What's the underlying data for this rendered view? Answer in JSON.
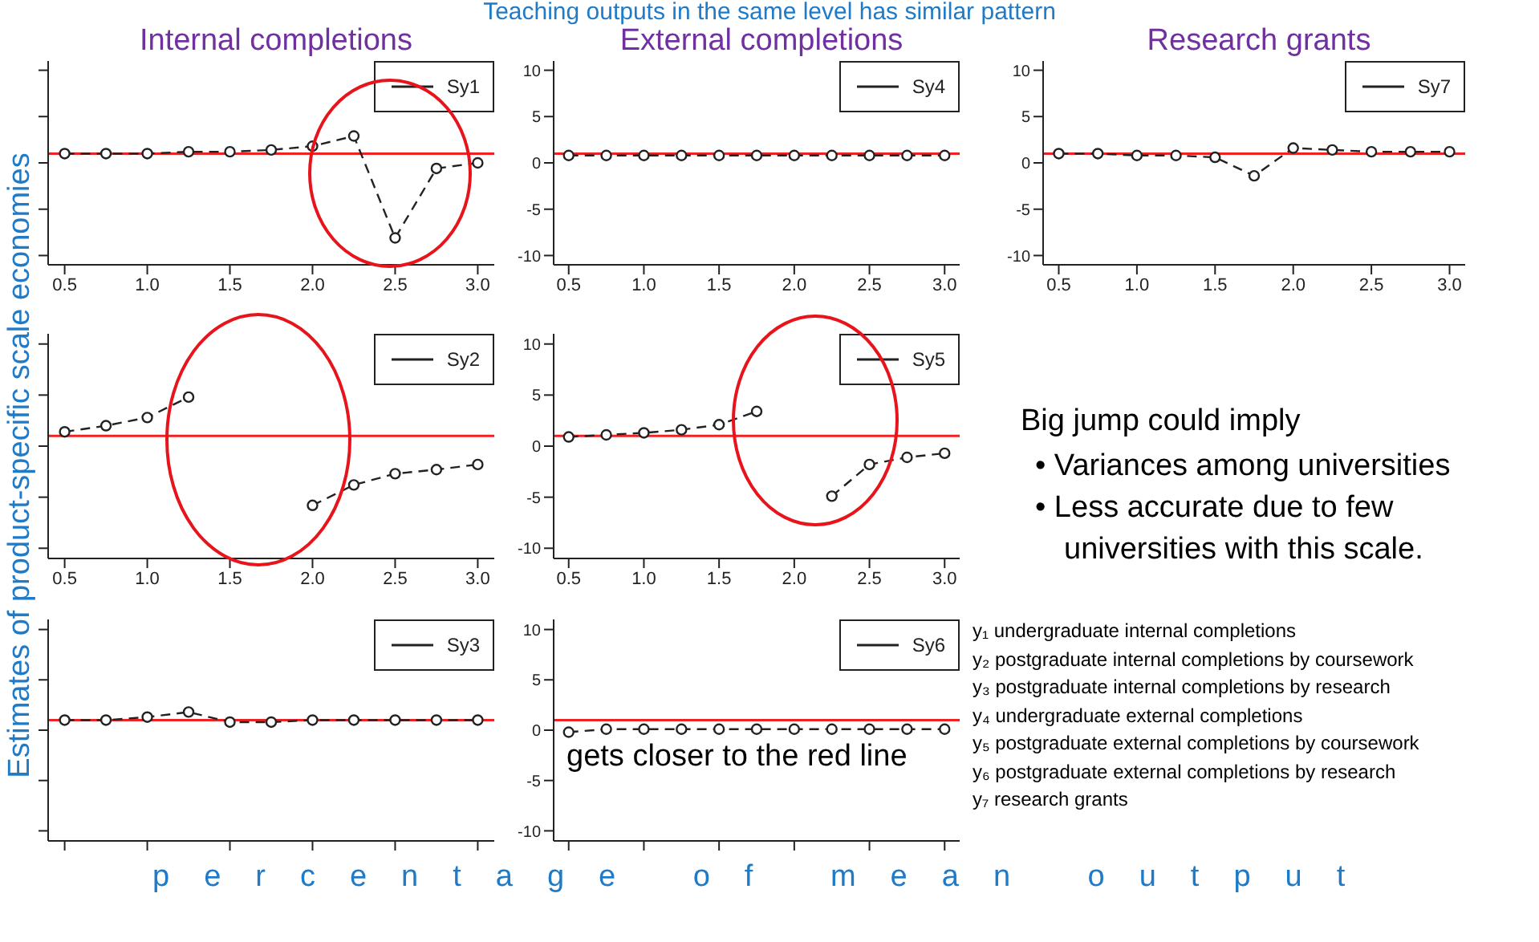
{
  "chart_data": [
    {
      "type": "line",
      "title": "Internal completions",
      "x": [
        0.5,
        0.75,
        1,
        1.25,
        1.5,
        1.75,
        2,
        2.25,
        2.5,
        2.75,
        3
      ],
      "series": [
        {
          "name": "Sy1",
          "color": "#222222",
          "values": [
            1,
            1,
            1,
            1.2,
            1.2,
            1.4,
            1.8,
            2.9,
            -8.1,
            -0.6,
            0
          ]
        }
      ],
      "xlim": [
        0.4,
        3.1
      ],
      "xticks": [
        0.5,
        {
          "value": 1,
          "label": "1.0"
        },
        1.5,
        {
          "value": 2,
          "label": "2.0"
        },
        2.5,
        {
          "value": 3,
          "label": "3.0"
        }
      ],
      "ylim": [
        -11,
        11
      ],
      "yticks": [
        -10,
        -5,
        0,
        5,
        10
      ],
      "tick_labels": "x",
      "legend": "top right",
      "marker": "circle",
      "line_style": "dashed",
      "ref_lines": [
        {
          "axis": "y",
          "value": 1,
          "color": "#ee2222"
        }
      ]
    },
    {
      "type": "line",
      "title": "External completions",
      "x": [
        0.5,
        0.75,
        1,
        1.25,
        1.5,
        1.75,
        2,
        2.25,
        2.5,
        2.75,
        3
      ],
      "series": [
        {
          "name": "Sy4",
          "color": "#222222",
          "values": [
            0.8,
            0.8,
            0.8,
            0.8,
            0.8,
            0.8,
            0.8,
            0.8,
            0.8,
            0.8,
            0.8
          ]
        }
      ],
      "xlim": [
        0.4,
        3.1
      ],
      "xticks": [
        0.5,
        {
          "value": 1,
          "label": "1.0"
        },
        1.5,
        {
          "value": 2,
          "label": "2.0"
        },
        2.5,
        {
          "value": 3,
          "label": "3.0"
        }
      ],
      "ylim": [
        -11,
        11
      ],
      "yticks": [
        -10,
        -5,
        0,
        5,
        10
      ],
      "legend": "top right",
      "marker": "circle",
      "line_style": "dashed",
      "ref_lines": [
        {
          "axis": "y",
          "value": 1,
          "color": "#ee2222"
        }
      ]
    },
    {
      "type": "line",
      "title": "Research grants",
      "x": [
        0.5,
        0.75,
        1,
        1.25,
        1.5,
        1.75,
        2,
        2.25,
        2.5,
        2.75,
        3
      ],
      "series": [
        {
          "name": "Sy7",
          "color": "#222222",
          "values": [
            1,
            1,
            0.8,
            0.8,
            0.6,
            -1.4,
            1.6,
            1.4,
            1.2,
            1.2,
            1.2
          ]
        }
      ],
      "xlim": [
        0.4,
        3.1
      ],
      "xticks": [
        0.5,
        {
          "value": 1,
          "label": "1.0"
        },
        1.5,
        {
          "value": 2,
          "label": "2.0"
        },
        2.5,
        {
          "value": 3,
          "label": "3.0"
        }
      ],
      "ylim": [
        -11,
        11
      ],
      "yticks": [
        -10,
        -5,
        0,
        5,
        10
      ],
      "legend": "top right",
      "marker": "circle",
      "line_style": "dashed",
      "ref_lines": [
        {
          "axis": "y",
          "value": 1,
          "color": "#ee2222"
        }
      ]
    },
    {
      "type": "line",
      "x": [
        0.5,
        0.75,
        1,
        1.25,
        1.5,
        1.75,
        2,
        2.25,
        2.5,
        2.75,
        3
      ],
      "series": [
        {
          "name": "Sy2",
          "color": "#222222",
          "values": [
            1.4,
            2,
            2.8,
            4.8,
            null,
            null,
            -5.8,
            -3.8,
            -2.7,
            -2.3,
            -1.8
          ]
        }
      ],
      "xlim": [
        0.4,
        3.1
      ],
      "xticks": [
        0.5,
        {
          "value": 1,
          "label": "1.0"
        },
        1.5,
        {
          "value": 2,
          "label": "2.0"
        },
        2.5,
        {
          "value": 3,
          "label": "3.0"
        }
      ],
      "ylim": [
        -11,
        11
      ],
      "yticks": [
        -10,
        -5,
        0,
        5,
        10
      ],
      "tick_labels": "x",
      "legend": "top right",
      "marker": "circle",
      "line_style": "dashed",
      "ref_lines": [
        {
          "axis": "y",
          "value": 1,
          "color": "#ee2222"
        }
      ]
    },
    {
      "type": "line",
      "x": [
        0.5,
        0.75,
        1,
        1.25,
        1.5,
        1.75,
        2,
        2.25,
        2.5,
        2.75,
        3
      ],
      "series": [
        {
          "name": "Sy5",
          "color": "#222222",
          "values": [
            0.9,
            1.1,
            1.3,
            1.6,
            2.1,
            3.4,
            null,
            -4.9,
            -1.8,
            -1.1,
            -0.7
          ]
        }
      ],
      "xlim": [
        0.4,
        3.1
      ],
      "xticks": [
        0.5,
        {
          "value": 1,
          "label": "1.0"
        },
        1.5,
        {
          "value": 2,
          "label": "2.0"
        },
        2.5,
        {
          "value": 3,
          "label": "3.0"
        }
      ],
      "ylim": [
        -11,
        11
      ],
      "yticks": [
        -10,
        -5,
        0,
        5,
        10
      ],
      "legend": "top right",
      "marker": "circle",
      "line_style": "dashed",
      "ref_lines": [
        {
          "axis": "y",
          "value": 1,
          "color": "#ee2222"
        }
      ]
    },
    {
      "type": "line",
      "x": [
        0.5,
        0.75,
        1,
        1.25,
        1.5,
        1.75,
        2,
        2.25,
        2.5,
        2.75,
        3
      ],
      "series": [
        {
          "name": "Sy3",
          "color": "#222222",
          "values": [
            1,
            1,
            1.3,
            1.8,
            0.8,
            0.8,
            1,
            1,
            1,
            1,
            1
          ]
        }
      ],
      "xlim": [
        0.4,
        3.1
      ],
      "xticks": [
        {
          "value": 0.5,
          "label": null
        },
        {
          "value": 1,
          "label": null
        },
        {
          "value": 1.5,
          "label": null
        },
        {
          "value": 2,
          "label": null
        },
        {
          "value": 2.5,
          "label": null
        },
        {
          "value": 3,
          "label": null
        }
      ],
      "ylim": [
        -11,
        11
      ],
      "yticks": [
        -10,
        -5,
        0,
        5,
        10
      ],
      "tick_labels": false,
      "legend": "top right",
      "marker": "circle",
      "line_style": "dashed",
      "ref_lines": [
        {
          "axis": "y",
          "value": 1,
          "color": "#ee2222"
        }
      ]
    },
    {
      "type": "line",
      "x": [
        0.5,
        0.75,
        1,
        1.25,
        1.5,
        1.75,
        2,
        2.25,
        2.5,
        2.75,
        3
      ],
      "series": [
        {
          "name": "Sy6",
          "color": "#222222",
          "values": [
            -0.2,
            0.1,
            0.1,
            0.1,
            0.1,
            0.1,
            0.1,
            0.1,
            0.1,
            0.1,
            0.1
          ]
        }
      ],
      "xlim": [
        0.4,
        3.1
      ],
      "xticks": [
        {
          "value": 0.5,
          "label": null
        },
        {
          "value": 1,
          "label": null
        },
        {
          "value": 1.5,
          "label": null
        },
        {
          "value": 2,
          "label": null
        },
        {
          "value": 2.5,
          "label": null
        },
        {
          "value": 3,
          "label": null
        }
      ],
      "ylim": [
        -11,
        11
      ],
      "yticks": [
        -10,
        -5,
        0,
        5,
        10
      ],
      "tick_labels": "y",
      "legend": "top right",
      "marker": "circle",
      "line_style": "dashed",
      "ref_lines": [
        {
          "axis": "y",
          "value": 1,
          "color": "#ee2222"
        }
      ],
      "annotations": [
        "gets closer to the red line"
      ]
    },
    {
      "type": "other",
      "title": "Teaching outputs in the same level has similar pattern",
      "ylabel": "Estimates of product-specific scale economies",
      "xlabel": "percentage of mean output",
      "annotations": [
        "Big jump could imply",
        "•  Variances among universities",
        "•  Less accurate due to few universities with this scale.",
        "y₁ undergraduate internal completions",
        "y₂ postgraduate internal completions by coursework",
        "y₃ postgraduate internal completions by research",
        "y₄ undergraduate external completions",
        "y₅ postgraduate external completions by coursework",
        "y₆ postgraduate external completions by research",
        "y₇ research grants"
      ]
    }
  ]
}
